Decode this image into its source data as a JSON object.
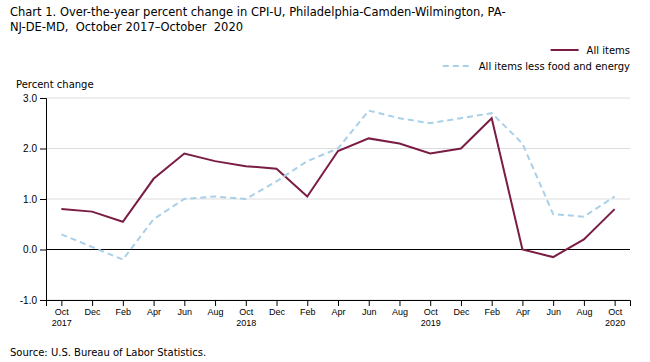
{
  "chart_data": {
    "type": "line",
    "title": "Chart 1. Over-the-year percent change in CPI-U, Philadelphia-Camden-Wilmington, PA-\nNJ-DE-MD,  October 2017–October  2020",
    "ylabel": "Percent change",
    "annotations": [
      "Source: U.S. Bureau of Labor Statistics."
    ],
    "categories": [
      "Oct\n2017",
      "Dec",
      "Feb",
      "Apr",
      "Jun",
      "Aug",
      "Oct\n2018",
      "Dec",
      "Feb",
      "Apr",
      "Jun",
      "Aug",
      "Oct\n2019",
      "Dec",
      "Feb",
      "Apr",
      "Jun",
      "Aug",
      "Oct\n2020"
    ],
    "series": [
      {
        "name": "All items",
        "color": "#7b1c44",
        "line_style": "solid",
        "values": [
          0.8,
          0.75,
          0.55,
          1.4,
          1.9,
          1.75,
          1.65,
          1.6,
          1.05,
          1.95,
          2.2,
          2.1,
          1.9,
          2.0,
          2.6,
          0.0,
          -0.15,
          0.2,
          0.8
        ]
      },
      {
        "name": "All items less food and energy",
        "color": "#a8d0e8",
        "line_style": "dashed",
        "values": [
          0.3,
          0.05,
          -0.2,
          0.6,
          1.0,
          1.05,
          1.0,
          1.35,
          1.75,
          2.0,
          2.75,
          2.6,
          2.5,
          2.6,
          2.7,
          2.1,
          0.7,
          0.65,
          1.05
        ]
      }
    ],
    "ylim": [
      -1.0,
      3.0
    ],
    "yticks": [
      {
        "value": -1.0,
        "label": "-1.0"
      },
      {
        "value": 0.0,
        "label": "0.0"
      },
      {
        "value": 1.0,
        "label": "1.0"
      },
      {
        "value": 2.0,
        "label": "2.0"
      },
      {
        "value": 3.0,
        "label": "3.0"
      }
    ],
    "grid": true,
    "legend": "upper right"
  }
}
